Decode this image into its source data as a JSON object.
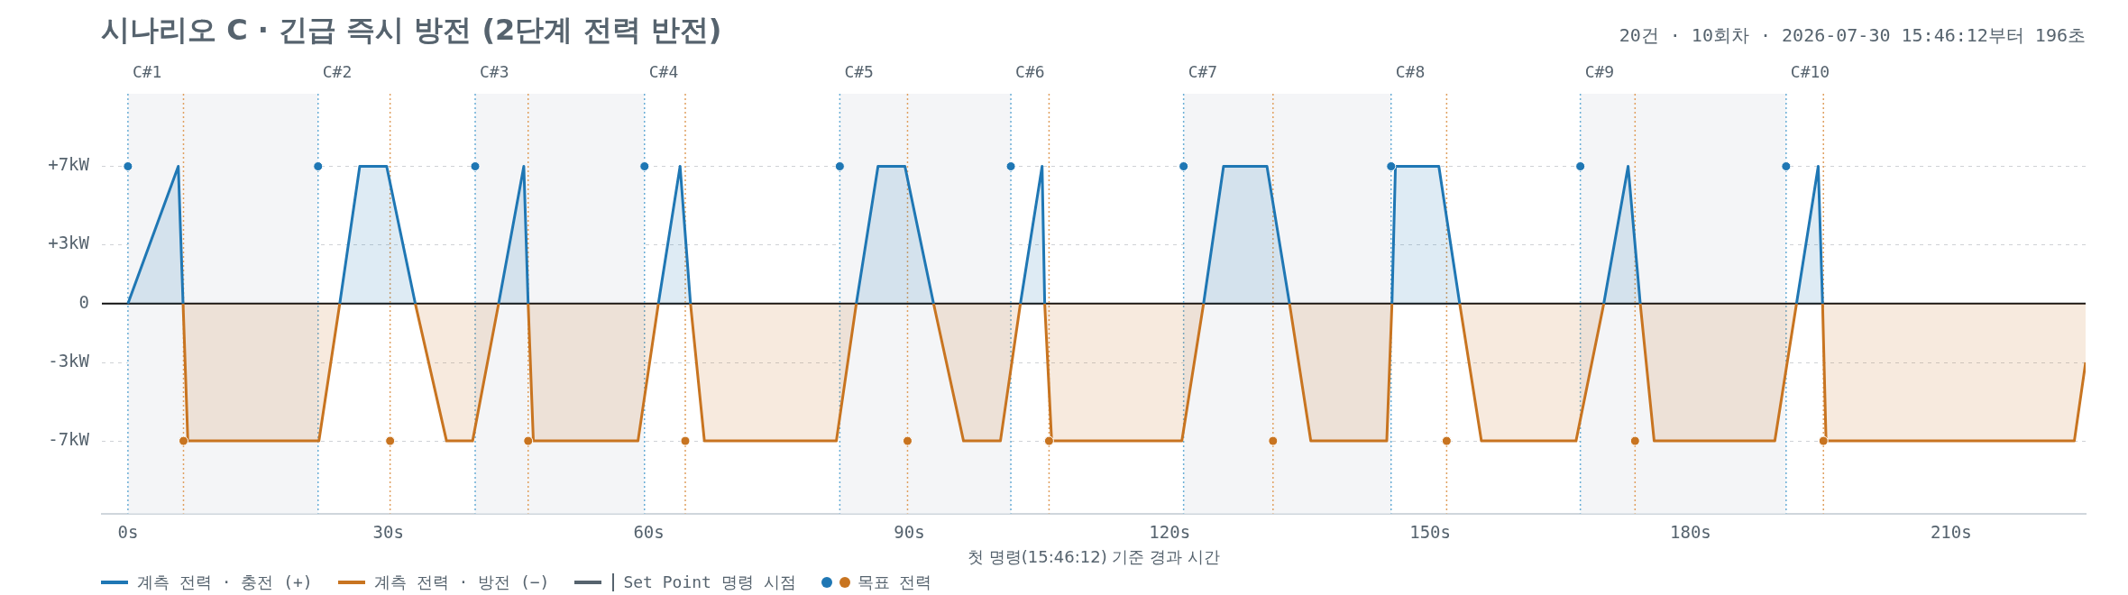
{
  "chart_data": {
    "type": "area",
    "title": "시나리오 C · 긴급 즉시 방전 (2단계 전력 반전)",
    "subtitle": "20건 · 10회차 · 2026-07-30 15:46:12부터 196초",
    "xlabel": "첫 명령(15:46:12) 기준 경과 시간",
    "annotations": [
      "Set Point 명령 시점"
    ],
    "xlim": [
      -3,
      225.5
    ],
    "xticks": [
      {
        "value": 0,
        "label": "0s"
      },
      {
        "value": 30,
        "label": "30s"
      },
      {
        "value": 60,
        "label": "60s"
      },
      {
        "value": 90,
        "label": "90s"
      },
      {
        "value": 120,
        "label": "120s"
      },
      {
        "value": 150,
        "label": "150s"
      },
      {
        "value": 180,
        "label": "180s"
      },
      {
        "value": 210,
        "label": "210s"
      }
    ],
    "ylim": [
      -10.7,
      10.7
    ],
    "yticks": [
      {
        "value": -7,
        "label": "-7kW"
      },
      {
        "value": -3,
        "label": "-3kW"
      },
      0,
      {
        "value": 3,
        "label": "+3kW"
      },
      {
        "value": 7,
        "label": "+7kW"
      }
    ],
    "grid": "y",
    "legend": "bottom left",
    "series": [
      {
        "type": "area",
        "name": "계측 전력 · 충전 (+)",
        "color": "#1f77b4",
        "x": [
          0,
          5.8,
          6.35,
          15,
          24.4,
          26.7,
          29.8,
          33.1,
          38,
          42.7,
          45.6,
          46.1,
          55,
          61.1,
          63.6,
          64.8,
          75,
          83.9,
          86.4,
          89.5,
          92.8,
          98,
          102.8,
          105.3,
          105.6,
          115,
          123.9,
          126.2,
          131.2,
          133.8,
          140,
          145.6,
          146.0,
          151.0,
          153.4,
          160,
          170.0,
          172.8,
          174.2,
          185,
          192.2,
          194.7,
          195.2
        ],
        "values": [
          0,
          7,
          0,
          null,
          0,
          7,
          7,
          0,
          null,
          0,
          7,
          0,
          null,
          0,
          7,
          0,
          null,
          0,
          7,
          7,
          0,
          null,
          0,
          7,
          0,
          null,
          0,
          7,
          7,
          0,
          null,
          0,
          7,
          7,
          0,
          null,
          0,
          7,
          0,
          null,
          0,
          7,
          0
        ]
      },
      {
        "type": "area",
        "name": "계측 전력 · 방전 (−)",
        "color": "#c87420",
        "x": [
          6.35,
          6.9,
          22.0,
          24.4,
          30,
          33.1,
          36.7,
          39.7,
          42.7,
          44,
          46.1,
          46.7,
          58.75,
          61.1,
          63,
          64.8,
          66.4,
          81.6,
          83.9,
          88,
          92.8,
          96.25,
          100.5,
          102.8,
          104,
          105.6,
          106.4,
          121.4,
          123.9,
          128,
          133.8,
          136.25,
          145.0,
          145.6,
          150,
          153.4,
          155.9,
          166.8,
          170.0,
          172,
          174.2,
          175.8,
          189.7,
          192.2,
          194,
          195.2,
          195.6,
          224.2,
          225.5
        ],
        "values": [
          0,
          -7,
          -7,
          0,
          null,
          0,
          -7,
          -7,
          0,
          null,
          0,
          -7,
          -7,
          0,
          null,
          0,
          -7,
          -7,
          0,
          null,
          0,
          -7,
          -7,
          0,
          null,
          0,
          -7,
          -7,
          0,
          null,
          0,
          -7,
          -7,
          0,
          null,
          0,
          -7,
          -7,
          0,
          null,
          0,
          -7,
          -7,
          0,
          null,
          0,
          -7,
          -7,
          -3
        ]
      },
      {
        "type": "scatter",
        "name": "목표 전력",
        "color": "#5a6570",
        "marker": "circle",
        "x": [
          0,
          6.4,
          21.9,
          30.2,
          40,
          46.1,
          59.5,
          64.2,
          82,
          89.8,
          101.7,
          106.1,
          121.6,
          131.9,
          145.5,
          151.9,
          167.3,
          173.6,
          191,
          195.3
        ],
        "values": [
          7,
          -7,
          7,
          -7,
          7,
          -7,
          7,
          -7,
          7,
          -7,
          7,
          -7,
          7,
          -7,
          7,
          -7,
          7,
          -7,
          7,
          -7
        ],
        "colors": [
          "#1f77b4",
          "#c87420",
          "#1f77b4",
          "#c87420",
          "#1f77b4",
          "#c87420",
          "#1f77b4",
          "#c87420",
          "#1f77b4",
          "#c87420",
          "#1f77b4",
          "#c87420",
          "#1f77b4",
          "#c87420",
          "#1f77b4",
          "#c87420",
          "#1f77b4",
          "#c87420",
          "#1f77b4",
          "#c87420"
        ]
      }
    ],
    "ref_lines": [
      {
        "axis": "y",
        "value": 0,
        "label": null,
        "color": "#111111",
        "line_style": "solid"
      },
      {
        "axis": "x",
        "value": 0,
        "label": "C#1",
        "color": "#6aaed6",
        "line_style": "dotted"
      },
      {
        "axis": "x",
        "value": 6.4,
        "label": null,
        "color": "#e0a060",
        "line_style": "dotted"
      },
      {
        "axis": "x",
        "value": 21.9,
        "label": "C#2",
        "color": "#6aaed6",
        "line_style": "dotted"
      },
      {
        "axis": "x",
        "value": 30.2,
        "label": null,
        "color": "#e0a060",
        "line_style": "dotted"
      },
      {
        "axis": "x",
        "value": 40,
        "label": "C#3",
        "color": "#6aaed6",
        "line_style": "dotted"
      },
      {
        "axis": "x",
        "value": 46.1,
        "label": null,
        "color": "#e0a060",
        "line_style": "dotted"
      },
      {
        "axis": "x",
        "value": 59.5,
        "label": "C#4",
        "color": "#6aaed6",
        "line_style": "dotted"
      },
      {
        "axis": "x",
        "value": 64.2,
        "label": null,
        "color": "#e0a060",
        "line_style": "dotted"
      },
      {
        "axis": "x",
        "value": 82,
        "label": "C#5",
        "color": "#6aaed6",
        "line_style": "dotted"
      },
      {
        "axis": "x",
        "value": 89.8,
        "label": null,
        "color": "#e0a060",
        "line_style": "dotted"
      },
      {
        "axis": "x",
        "value": 101.7,
        "label": "C#6",
        "color": "#6aaed6",
        "line_style": "dotted"
      },
      {
        "axis": "x",
        "value": 106.1,
        "label": null,
        "color": "#e0a060",
        "line_style": "dotted"
      },
      {
        "axis": "x",
        "value": 121.6,
        "label": "C#7",
        "color": "#6aaed6",
        "line_style": "dotted"
      },
      {
        "axis": "x",
        "value": 131.9,
        "label": null,
        "color": "#e0a060",
        "line_style": "dotted"
      },
      {
        "axis": "x",
        "value": 145.5,
        "label": "C#8",
        "color": "#6aaed6",
        "line_style": "dotted"
      },
      {
        "axis": "x",
        "value": 151.9,
        "label": null,
        "color": "#e0a060",
        "line_style": "dotted"
      },
      {
        "axis": "x",
        "value": 167.3,
        "label": "C#9",
        "color": "#6aaed6",
        "line_style": "dotted"
      },
      {
        "axis": "x",
        "value": 173.6,
        "label": null,
        "color": "#e0a060",
        "line_style": "dotted"
      },
      {
        "axis": "x",
        "value": 191,
        "label": "C#10",
        "color": "#6aaed6",
        "line_style": "dotted"
      },
      {
        "axis": "x",
        "value": 195.3,
        "label": null,
        "color": "#e0a060",
        "line_style": "dotted"
      }
    ],
    "bands": [
      {
        "axis": "x",
        "from": 0,
        "to": 21.9,
        "label": null,
        "color": "#f4f5f7"
      },
      {
        "axis": "x",
        "from": 40,
        "to": 59.5,
        "label": null,
        "color": "#f4f5f7"
      },
      {
        "axis": "x",
        "from": 82,
        "to": 101.7,
        "label": null,
        "color": "#f4f5f7"
      },
      {
        "axis": "x",
        "from": 121.6,
        "to": 145.5,
        "label": null,
        "color": "#f4f5f7"
      },
      {
        "axis": "x",
        "from": 167.3,
        "to": 191,
        "label": null,
        "color": "#f4f5f7"
      }
    ]
  }
}
